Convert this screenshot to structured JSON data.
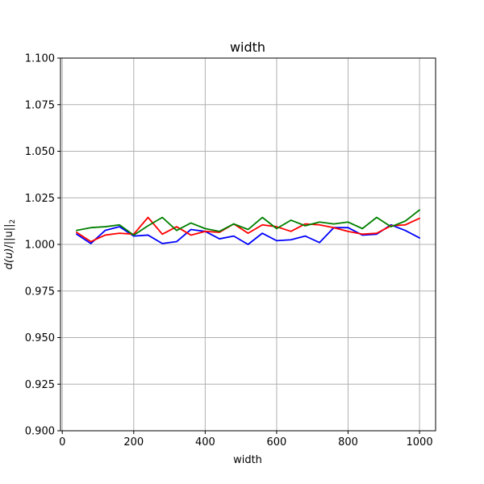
{
  "chart_data": {
    "type": "line",
    "title": "width",
    "xlabel": "width",
    "ylabel_parts": {
      "italic": "d(u)",
      "normal": "/||u||",
      "subscript": "2"
    },
    "xlim": [
      -5,
      1045
    ],
    "ylim": [
      0.9,
      1.1
    ],
    "xticks": [
      0,
      200,
      400,
      600,
      800,
      1000
    ],
    "xtick_labels": [
      "0",
      "200",
      "400",
      "600",
      "800",
      "1000"
    ],
    "yticks": [
      0.9,
      0.925,
      0.95,
      0.975,
      1.0,
      1.025,
      1.05,
      1.075,
      1.1
    ],
    "ytick_labels": [
      "0.900",
      "0.925",
      "0.950",
      "0.975",
      "1.000",
      "1.025",
      "1.050",
      "1.075",
      "1.100"
    ],
    "grid": true,
    "x": [
      40,
      80,
      120,
      160,
      200,
      240,
      280,
      320,
      360,
      400,
      440,
      480,
      520,
      560,
      600,
      640,
      680,
      720,
      760,
      800,
      840,
      880,
      920,
      960,
      1000
    ],
    "series": [
      {
        "color": "#0000ff",
        "values": [
          1.0055,
          1.0005,
          1.0075,
          1.0095,
          1.0045,
          1.005,
          1.0005,
          1.0015,
          1.008,
          1.007,
          1.003,
          1.0045,
          1.0,
          1.006,
          1.002,
          1.0025,
          1.0045,
          1.001,
          1.009,
          1.009,
          1.005,
          1.0055,
          1.0105,
          1.0075,
          1.0035
        ]
      },
      {
        "color": "#ff0000",
        "values": [
          1.0065,
          1.0015,
          1.005,
          1.006,
          1.0055,
          1.0145,
          1.0055,
          1.0095,
          1.005,
          1.007,
          1.0065,
          1.011,
          1.006,
          1.0105,
          1.0095,
          1.007,
          1.011,
          1.0105,
          1.009,
          1.007,
          1.0055,
          1.006,
          1.01,
          1.0105,
          1.014
        ]
      },
      {
        "color": "#008000",
        "values": [
          1.0075,
          1.009,
          1.0095,
          1.0105,
          1.005,
          1.01,
          1.0145,
          1.0075,
          1.0115,
          1.0085,
          1.007,
          1.011,
          1.008,
          1.0145,
          1.0085,
          1.013,
          1.01,
          1.012,
          1.011,
          1.012,
          1.0085,
          1.0145,
          1.0095,
          1.0125,
          1.0185
        ]
      }
    ]
  }
}
